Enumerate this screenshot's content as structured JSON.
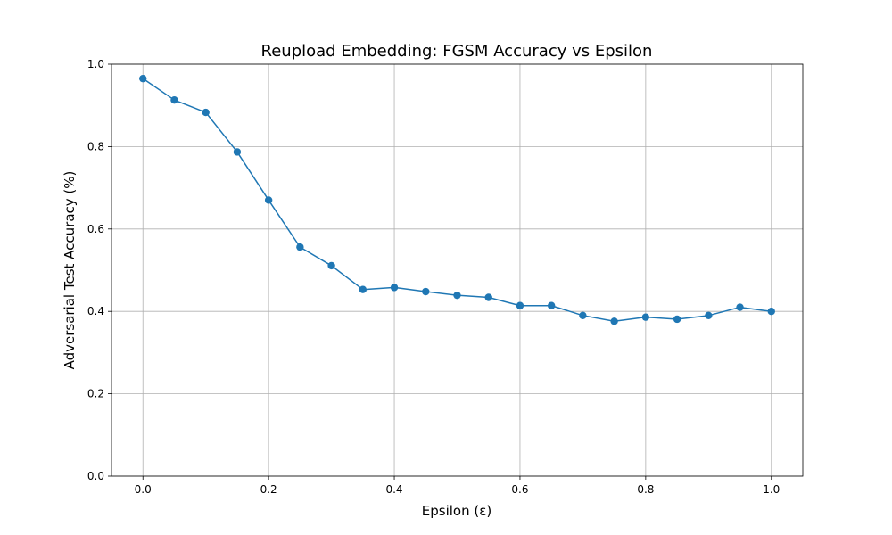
{
  "chart_data": {
    "type": "line",
    "title": "Reupload Embedding: FGSM Accuracy vs Epsilon",
    "xlabel": "Epsilon (ε)",
    "ylabel": "Adversarial Test Accuracy (%)",
    "xlim": [
      -0.05,
      1.05
    ],
    "ylim": [
      0.0,
      1.0
    ],
    "xticks": [
      0.0,
      0.2,
      0.4,
      0.6,
      0.8,
      1.0
    ],
    "xtick_labels": [
      "0.0",
      "0.2",
      "0.4",
      "0.6",
      "0.8",
      "1.0"
    ],
    "yticks": [
      0.0,
      0.2,
      0.4,
      0.6,
      0.8,
      1.0
    ],
    "ytick_labels": [
      "0.0",
      "0.2",
      "0.4",
      "0.6",
      "0.8",
      "1.0"
    ],
    "grid": true,
    "legend": "none",
    "series": [
      {
        "color": "#1f77b4",
        "marker": "circle",
        "x": [
          0.0,
          0.05,
          0.1,
          0.15,
          0.2,
          0.25,
          0.3,
          0.35,
          0.4,
          0.45,
          0.5,
          0.55,
          0.6,
          0.65,
          0.7,
          0.75,
          0.8,
          0.85,
          0.9,
          0.95,
          1.0
        ],
        "y": [
          0.965,
          0.913,
          0.883,
          0.787,
          0.67,
          0.556,
          0.511,
          0.453,
          0.458,
          0.448,
          0.439,
          0.434,
          0.414,
          0.414,
          0.39,
          0.376,
          0.386,
          0.381,
          0.39,
          0.41,
          0.4
        ]
      }
    ]
  }
}
